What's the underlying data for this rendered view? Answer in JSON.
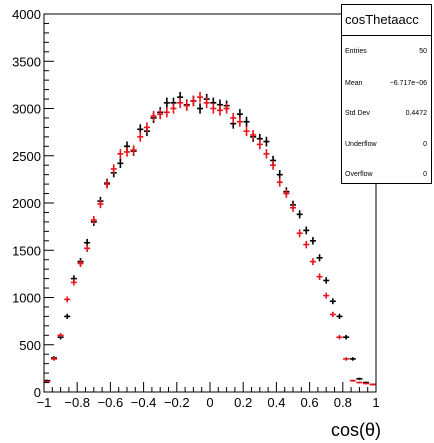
{
  "stats": {
    "title": "cosThetaacc",
    "rows": [
      {
        "key": "Entries",
        "value": "50"
      },
      {
        "key": "Mean",
        "value": "−6.717e−06"
      },
      {
        "key": "Std Dev",
        "value": "0.4472"
      },
      {
        "key": "Underflow",
        "value": "0"
      },
      {
        "key": "Overflow",
        "value": "0"
      }
    ]
  },
  "chart_data": {
    "type": "scatter",
    "title": "",
    "xlabel": "cos(θ)",
    "ylabel": "",
    "xlim": [
      -1,
      1
    ],
    "ylim": [
      0,
      4000
    ],
    "x_ticks": [
      "−1",
      "−0.8",
      "−0.6",
      "−0.4",
      "−0.2",
      "0",
      "0.2",
      "0.4",
      "0.6",
      "0.8",
      "1"
    ],
    "y_ticks": [
      "0",
      "500",
      "1000",
      "1500",
      "2000",
      "2500",
      "3000",
      "3500",
      "4000"
    ],
    "grid": false,
    "colors": {
      "black": "#000000",
      "red": "#e8141b"
    },
    "series": [
      {
        "color": "#000000",
        "x": [
          -0.98,
          -0.94,
          -0.9,
          -0.86,
          -0.82,
          -0.78,
          -0.74,
          -0.7,
          -0.66,
          -0.62,
          -0.58,
          -0.54,
          -0.5,
          -0.46,
          -0.42,
          -0.38,
          -0.34,
          -0.3,
          -0.26,
          -0.22,
          -0.18,
          -0.14,
          -0.1,
          -0.06,
          -0.02,
          0.02,
          0.06,
          0.1,
          0.14,
          0.18,
          0.22,
          0.26,
          0.3,
          0.34,
          0.38,
          0.42,
          0.46,
          0.5,
          0.54,
          0.58,
          0.62,
          0.66,
          0.7,
          0.74,
          0.78,
          0.82,
          0.86,
          0.9,
          0.94,
          0.98
        ],
        "y": [
          120,
          360,
          580,
          800,
          1200,
          1380,
          1580,
          1800,
          2020,
          2210,
          2320,
          2420,
          2600,
          2550,
          2780,
          2760,
          2900,
          2960,
          3060,
          3060,
          3120,
          3040,
          3080,
          3000,
          3100,
          3060,
          3040,
          3030,
          2840,
          2940,
          2860,
          2700,
          2680,
          2650,
          2450,
          2300,
          2120,
          1980,
          1880,
          1710,
          1600,
          1420,
          1180,
          960,
          800,
          580,
          350,
          140,
          100,
          80
        ]
      },
      {
        "color": "#e8141b",
        "x": [
          -0.98,
          -0.94,
          -0.9,
          -0.86,
          -0.82,
          -0.78,
          -0.74,
          -0.7,
          -0.66,
          -0.62,
          -0.58,
          -0.54,
          -0.5,
          -0.46,
          -0.42,
          -0.38,
          -0.34,
          -0.3,
          -0.26,
          -0.22,
          -0.18,
          -0.14,
          -0.1,
          -0.06,
          -0.02,
          0.02,
          0.06,
          0.1,
          0.14,
          0.18,
          0.22,
          0.26,
          0.3,
          0.34,
          0.38,
          0.42,
          0.46,
          0.5,
          0.54,
          0.58,
          0.62,
          0.66,
          0.7,
          0.74,
          0.78,
          0.82,
          0.86,
          0.9,
          0.94,
          0.98
        ],
        "y": [
          110,
          350,
          600,
          980,
          1160,
          1360,
          1520,
          1820,
          1990,
          2200,
          2360,
          2520,
          2540,
          2560,
          2700,
          2800,
          2920,
          2940,
          2960,
          3000,
          3060,
          3030,
          3080,
          3120,
          3060,
          3000,
          2980,
          3000,
          2900,
          2860,
          2760,
          2720,
          2620,
          2520,
          2400,
          2220,
          2100,
          1950,
          1680,
          1560,
          1380,
          1220,
          1020,
          820,
          580,
          350,
          120,
          100,
          90,
          80
        ]
      }
    ]
  }
}
